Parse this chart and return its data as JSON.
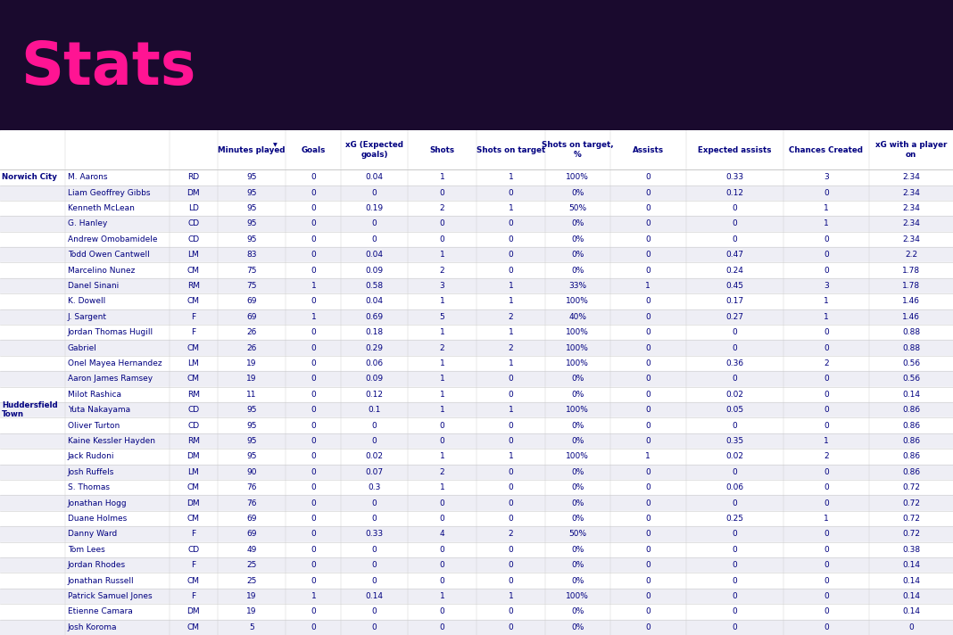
{
  "title": "Stats",
  "title_color": "#FF1493",
  "bg_color": "#1a0a2e",
  "table_bg": "#ffffff",
  "header_text_color": "#000080",
  "cell_text_color": "#000080",
  "team_label_color": "#000080",
  "columns": [
    "Minutes played",
    "Goals",
    "xG (Expected\ngoals)",
    "Shots",
    "Shots on target",
    "Shots on target,\n%",
    "Assists",
    "Expected assists",
    "Chances Created",
    "xG with a player\non"
  ],
  "rows": [
    [
      "Norwich City",
      "M. Aarons",
      "RD",
      "95",
      "0",
      "0.04",
      "1",
      "1",
      "100%",
      "0",
      "0.33",
      "3",
      "2.34"
    ],
    [
      "",
      "Liam Geoffrey Gibbs",
      "DM",
      "95",
      "0",
      "0",
      "0",
      "0",
      "0%",
      "0",
      "0.12",
      "0",
      "2.34"
    ],
    [
      "",
      "Kenneth McLean",
      "LD",
      "95",
      "0",
      "0.19",
      "2",
      "1",
      "50%",
      "0",
      "0",
      "1",
      "2.34"
    ],
    [
      "",
      "G. Hanley",
      "CD",
      "95",
      "0",
      "0",
      "0",
      "0",
      "0%",
      "0",
      "0",
      "1",
      "2.34"
    ],
    [
      "",
      "Andrew Omobamidele",
      "CD",
      "95",
      "0",
      "0",
      "0",
      "0",
      "0%",
      "0",
      "0",
      "0",
      "2.34"
    ],
    [
      "",
      "Todd Owen Cantwell",
      "LM",
      "83",
      "0",
      "0.04",
      "1",
      "0",
      "0%",
      "0",
      "0.47",
      "0",
      "2.2"
    ],
    [
      "",
      "Marcelino Nunez",
      "CM",
      "75",
      "0",
      "0.09",
      "2",
      "0",
      "0%",
      "0",
      "0.24",
      "0",
      "1.78"
    ],
    [
      "",
      "Danel Sinani",
      "RM",
      "75",
      "1",
      "0.58",
      "3",
      "1",
      "33%",
      "1",
      "0.45",
      "3",
      "1.78"
    ],
    [
      "",
      "K. Dowell",
      "CM",
      "69",
      "0",
      "0.04",
      "1",
      "1",
      "100%",
      "0",
      "0.17",
      "1",
      "1.46"
    ],
    [
      "",
      "J. Sargent",
      "F",
      "69",
      "1",
      "0.69",
      "5",
      "2",
      "40%",
      "0",
      "0.27",
      "1",
      "1.46"
    ],
    [
      "",
      "Jordan Thomas Hugill",
      "F",
      "26",
      "0",
      "0.18",
      "1",
      "1",
      "100%",
      "0",
      "0",
      "0",
      "0.88"
    ],
    [
      "",
      "Gabriel",
      "CM",
      "26",
      "0",
      "0.29",
      "2",
      "2",
      "100%",
      "0",
      "0",
      "0",
      "0.88"
    ],
    [
      "",
      "Onel Mayea Hernandez",
      "LM",
      "19",
      "0",
      "0.06",
      "1",
      "1",
      "100%",
      "0",
      "0.36",
      "2",
      "0.56"
    ],
    [
      "",
      "Aaron James Ramsey",
      "CM",
      "19",
      "0",
      "0.09",
      "1",
      "0",
      "0%",
      "0",
      "0",
      "0",
      "0.56"
    ],
    [
      "",
      "Milot Rashica",
      "RM",
      "11",
      "0",
      "0.12",
      "1",
      "0",
      "0%",
      "0",
      "0.02",
      "0",
      "0.14"
    ],
    [
      "Huddersfield\nTown",
      "Yuta Nakayama",
      "CD",
      "95",
      "0",
      "0.1",
      "1",
      "1",
      "100%",
      "0",
      "0.05",
      "0",
      "0.86"
    ],
    [
      "",
      "Oliver Turton",
      "CD",
      "95",
      "0",
      "0",
      "0",
      "0",
      "0%",
      "0",
      "0",
      "0",
      "0.86"
    ],
    [
      "",
      "Kaine Kessler Hayden",
      "RM",
      "95",
      "0",
      "0",
      "0",
      "0",
      "0%",
      "0",
      "0.35",
      "1",
      "0.86"
    ],
    [
      "",
      "Jack Rudoni",
      "DM",
      "95",
      "0",
      "0.02",
      "1",
      "1",
      "100%",
      "1",
      "0.02",
      "2",
      "0.86"
    ],
    [
      "",
      "Josh Ruffels",
      "LM",
      "90",
      "0",
      "0.07",
      "2",
      "0",
      "0%",
      "0",
      "0",
      "0",
      "0.86"
    ],
    [
      "",
      "S. Thomas",
      "CM",
      "76",
      "0",
      "0.3",
      "1",
      "0",
      "0%",
      "0",
      "0.06",
      "0",
      "0.72"
    ],
    [
      "",
      "Jonathan Hogg",
      "DM",
      "76",
      "0",
      "0",
      "0",
      "0",
      "0%",
      "0",
      "0",
      "0",
      "0.72"
    ],
    [
      "",
      "Duane Holmes",
      "CM",
      "69",
      "0",
      "0",
      "0",
      "0",
      "0%",
      "0",
      "0.25",
      "1",
      "0.72"
    ],
    [
      "",
      "Danny Ward",
      "F",
      "69",
      "0",
      "0.33",
      "4",
      "2",
      "50%",
      "0",
      "0",
      "0",
      "0.72"
    ],
    [
      "",
      "Tom Lees",
      "CD",
      "49",
      "0",
      "0",
      "0",
      "0",
      "0%",
      "0",
      "0",
      "0",
      "0.38"
    ],
    [
      "",
      "Jordan Rhodes",
      "F",
      "25",
      "0",
      "0",
      "0",
      "0",
      "0%",
      "0",
      "0",
      "0",
      "0.14"
    ],
    [
      "",
      "Jonathan Russell",
      "CM",
      "25",
      "0",
      "0",
      "0",
      "0",
      "0%",
      "0",
      "0",
      "0",
      "0.14"
    ],
    [
      "",
      "Patrick Samuel Jones",
      "F",
      "19",
      "1",
      "0.14",
      "1",
      "1",
      "100%",
      "0",
      "0",
      "0",
      "0.14"
    ],
    [
      "",
      "Etienne Camara",
      "DM",
      "19",
      "0",
      "0",
      "0",
      "0",
      "0%",
      "0",
      "0",
      "0",
      "0.14"
    ],
    [
      "",
      "Josh Koroma",
      "CM",
      "5",
      "0",
      "0",
      "0",
      "0",
      "0%",
      "0",
      "0",
      "0",
      "0"
    ]
  ]
}
